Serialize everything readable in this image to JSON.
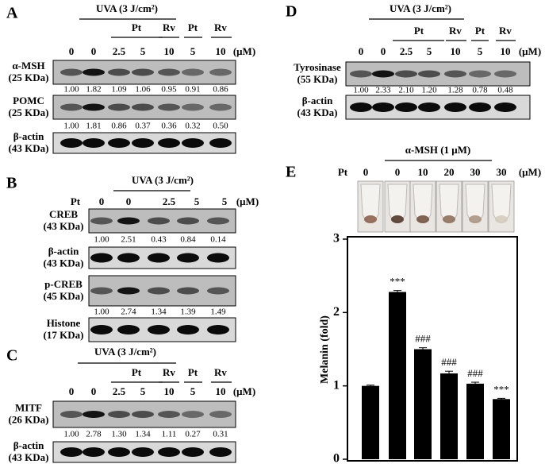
{
  "panel_a": {
    "label": "A",
    "treatment": "UVA (3 J/cm²)",
    "groups": [
      "Pt",
      "Rv",
      "Pt",
      "Rv"
    ],
    "doses": [
      "0",
      "0",
      "2.5",
      "5",
      "10",
      "5",
      "10"
    ],
    "unit": "(μM)",
    "blots": [
      {
        "name": "α-MSH",
        "size": "(25 KDa)",
        "quant": [
          "1.00",
          "1.82",
          "1.09",
          "1.06",
          "0.95",
          "0.91",
          "0.86"
        ]
      },
      {
        "name": "POMC",
        "size": "(25 KDa)",
        "quant": [
          "1.00",
          "1.81",
          "0.86",
          "0.37",
          "0.36",
          "0.32",
          "0.50"
        ]
      },
      {
        "name": "β-actin",
        "size": "(43 KDa)"
      }
    ]
  },
  "panel_b": {
    "label": "B",
    "treatment": "UVA (3 J/cm²)",
    "dose_label": "Pt",
    "doses": [
      "0",
      "0",
      "2.5",
      "5",
      "5"
    ],
    "unit": "(μM)",
    "blots": [
      {
        "name": "CREB",
        "size": "(43 KDa)",
        "quant": [
          "1.00",
          "2.51",
          "0.43",
          "0.84",
          "0.14"
        ]
      },
      {
        "name": "β-actin",
        "size": "(43 KDa)"
      },
      {
        "name": "p-CREB",
        "size": "(45 KDa)",
        "quant": [
          "1.00",
          "2.74",
          "1.34",
          "1.39",
          "1.49"
        ]
      },
      {
        "name": "Histone",
        "size": "(17 KDa)"
      }
    ]
  },
  "panel_c": {
    "label": "C",
    "treatment": "UVA (3 J/cm²)",
    "groups": [
      "Pt",
      "Rv",
      "Pt",
      "Rv"
    ],
    "doses": [
      "0",
      "0",
      "2.5",
      "5",
      "10",
      "5",
      "10"
    ],
    "unit": "(μM)",
    "blots": [
      {
        "name": "MITF",
        "size": "(26 KDa)",
        "quant": [
          "1.00",
          "2.78",
          "1.30",
          "1.34",
          "1.11",
          "0.27",
          "0.31"
        ]
      },
      {
        "name": "β-actin",
        "size": "(43 KDa)"
      }
    ]
  },
  "panel_d": {
    "label": "D",
    "treatment": "UVA (3 J/cm²)",
    "groups": [
      "Pt",
      "Rv",
      "Pt",
      "Rv"
    ],
    "doses": [
      "0",
      "0",
      "2.5",
      "5",
      "10",
      "5",
      "10"
    ],
    "unit": "(μM)",
    "blots": [
      {
        "name": "Tyrosinase",
        "size": "(55 KDa)",
        "quant": [
          "1.00",
          "2.33",
          "2.10",
          "1.20",
          "1.28",
          "0.78",
          "0.48"
        ]
      },
      {
        "name": "β-actin",
        "size": "(43 KDa)"
      }
    ]
  },
  "panel_e": {
    "label": "E",
    "treatment": "α-MSH (1 μM)",
    "dose_label": "Pt",
    "doses": [
      "0",
      "0",
      "10",
      "20",
      "30",
      "30"
    ],
    "unit": "(μM)",
    "chart": {
      "type": "bar",
      "ylabel": "Melanin (fold)",
      "values": [
        1.0,
        2.28,
        1.5,
        1.17,
        1.03,
        0.82
      ],
      "errors": [
        0.01,
        0.02,
        0.02,
        0.03,
        0.02,
        0.01
      ],
      "annotations": [
        null,
        "***",
        "###",
        "###",
        "###",
        "***"
      ],
      "color": "#000000",
      "ylim": [
        0,
        3
      ],
      "yticks": [
        0,
        1,
        2,
        3
      ]
    }
  }
}
